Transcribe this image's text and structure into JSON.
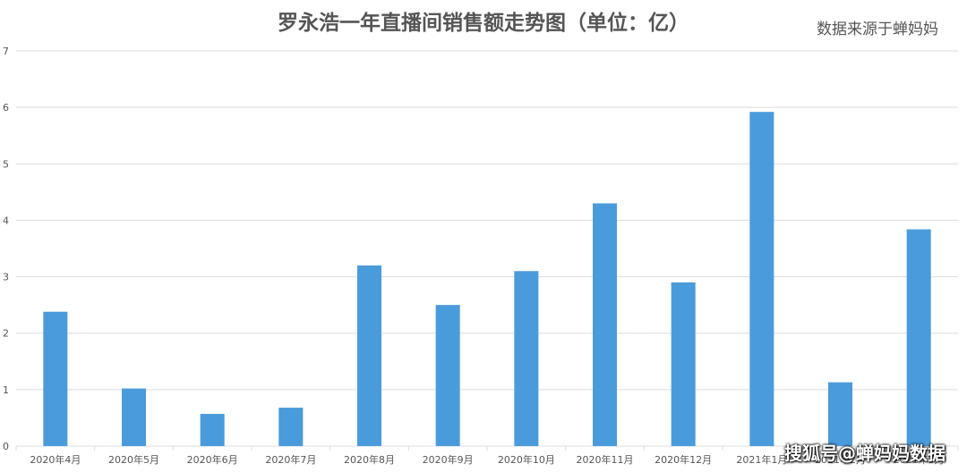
{
  "header": {
    "title": "罗永浩一年直播间销售额走势图（单位：亿）",
    "source": "数据来源于蝉妈妈"
  },
  "watermark": "搜狐号@蝉妈妈数据",
  "colors": {
    "bar": "#4A9BDB",
    "grid": "#DCDCDC",
    "axis_text": "#555555"
  },
  "chart_data": {
    "type": "bar",
    "title": "罗永浩一年直播间销售额走势图（单位：亿）",
    "xlabel": "",
    "ylabel": "",
    "ylim": [
      0,
      7
    ],
    "yticks": [
      0,
      1,
      2,
      3,
      4,
      5,
      6,
      7
    ],
    "grid": true,
    "categories": [
      "2020年4月",
      "2020年5月",
      "2020年6月",
      "2020年7月",
      "2020年8月",
      "2020年9月",
      "2020年10月",
      "2020年11月",
      "2020年12月",
      "2021年1月",
      "2021年2月",
      "2021年3月"
    ],
    "values": [
      2.38,
      1.02,
      0.57,
      0.68,
      3.2,
      2.5,
      3.1,
      4.3,
      2.9,
      5.92,
      1.13,
      3.84
    ]
  }
}
